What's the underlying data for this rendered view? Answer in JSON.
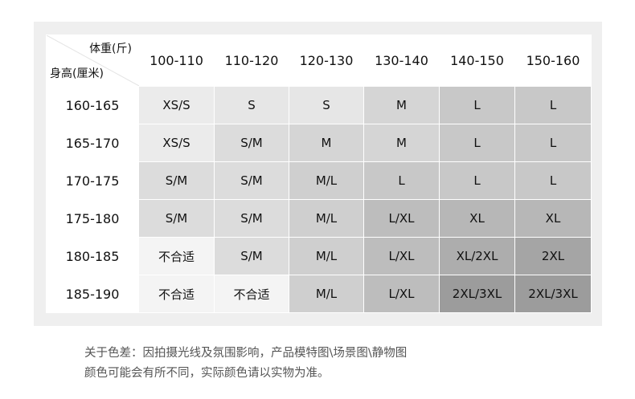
{
  "header": {
    "weight_label": "体重(斤)",
    "height_label": "身高(厘米)",
    "weights": [
      "100-110",
      "110-120",
      "120-130",
      "130-140",
      "140-150",
      "150-160"
    ]
  },
  "rows": [
    {
      "height": "160-165",
      "sizes": [
        "XS/S",
        "S",
        "S",
        "M",
        "L",
        "L"
      ]
    },
    {
      "height": "165-170",
      "sizes": [
        "XS/S",
        "S/M",
        "M",
        "M",
        "L",
        "L"
      ]
    },
    {
      "height": "170-175",
      "sizes": [
        "S/M",
        "S/M",
        "M/L",
        "L",
        "L",
        "L"
      ]
    },
    {
      "height": "175-180",
      "sizes": [
        "S/M",
        "S/M",
        "M/L",
        "L/XL",
        "XL",
        "XL"
      ]
    },
    {
      "height": "180-185",
      "sizes": [
        "不合适",
        "S/M",
        "M/L",
        "L/XL",
        "XL/2XL",
        "2XL"
      ]
    },
    {
      "height": "185-190",
      "sizes": [
        "不合适",
        "不合适",
        "M/L",
        "L/XL",
        "2XL/3XL",
        "2XL/3XL"
      ]
    }
  ],
  "size_colors": {
    "不合适": "#f4f4f4",
    "XS/S": "#ebebeb",
    "S": "#e6e6e6",
    "S/M": "#dcdcdc",
    "M": "#d5d5d5",
    "M/L": "#cfcfcf",
    "L": "#c8c8c8",
    "L/XL": "#bdbdbd",
    "XL": "#b7b7b7",
    "XL/2XL": "#adadad",
    "2XL": "#a5a5a5",
    "2XL/3XL": "#9c9c9c"
  },
  "note": {
    "line1": "关于色差：因拍摄光线及氛围影响，产品模特图\\场景图\\静物图",
    "line2": "颜色可能会有所不同，实际颜色请以实物为准。"
  }
}
